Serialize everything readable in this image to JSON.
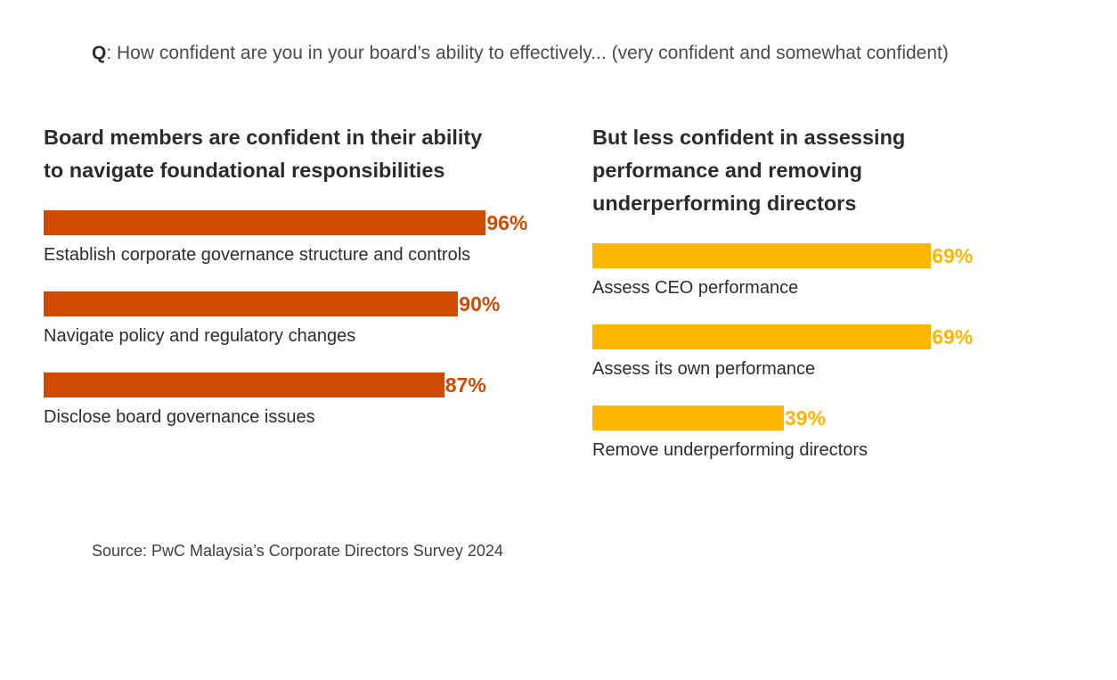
{
  "question": {
    "prefix": "Q",
    "text": ": How confident are you in your board’s ability to effectively... (very confident and somewhat confident)"
  },
  "source_note": "Source: PwC Malaysia’s Corporate Directors Survey 2024",
  "colors": {
    "orange": "#d04a02",
    "yellow": "#ffb600",
    "heading_text": "#2b2b2b",
    "body_text": "#2d2d31",
    "question_text": "#4b4b4d"
  },
  "chart_data": [
    {
      "type": "bar",
      "orientation": "horizontal",
      "title": "Board members are confident in their ability to navigate foundational responsibilities",
      "categories": [
        "Establish corporate governance structure and controls",
        "Navigate policy and regulatory changes",
        "Disclose board governance issues"
      ],
      "values": [
        96,
        90,
        87
      ],
      "value_labels": [
        "96%",
        "90%",
        "87%"
      ],
      "bar_color": "#d04a02",
      "value_label_color": "#d04a02",
      "xlim": [
        0,
        100
      ],
      "grid": false,
      "legend": false,
      "value_label_position": "end-of-bar",
      "category_label_position": "below-bar"
    },
    {
      "type": "bar",
      "orientation": "horizontal",
      "title": "But less confident in assessing performance and removing underperforming directors",
      "categories": [
        "Assess CEO performance",
        "Assess its own performance",
        "Remove underperforming directors"
      ],
      "values": [
        69,
        69,
        39
      ],
      "value_labels": [
        "69%",
        "69%",
        "39%"
      ],
      "bar_color": "#ffb600",
      "value_label_color": "#ffb600",
      "xlim": [
        0,
        100
      ],
      "grid": false,
      "legend": false,
      "value_label_position": "end-of-bar",
      "category_label_position": "below-bar"
    }
  ]
}
